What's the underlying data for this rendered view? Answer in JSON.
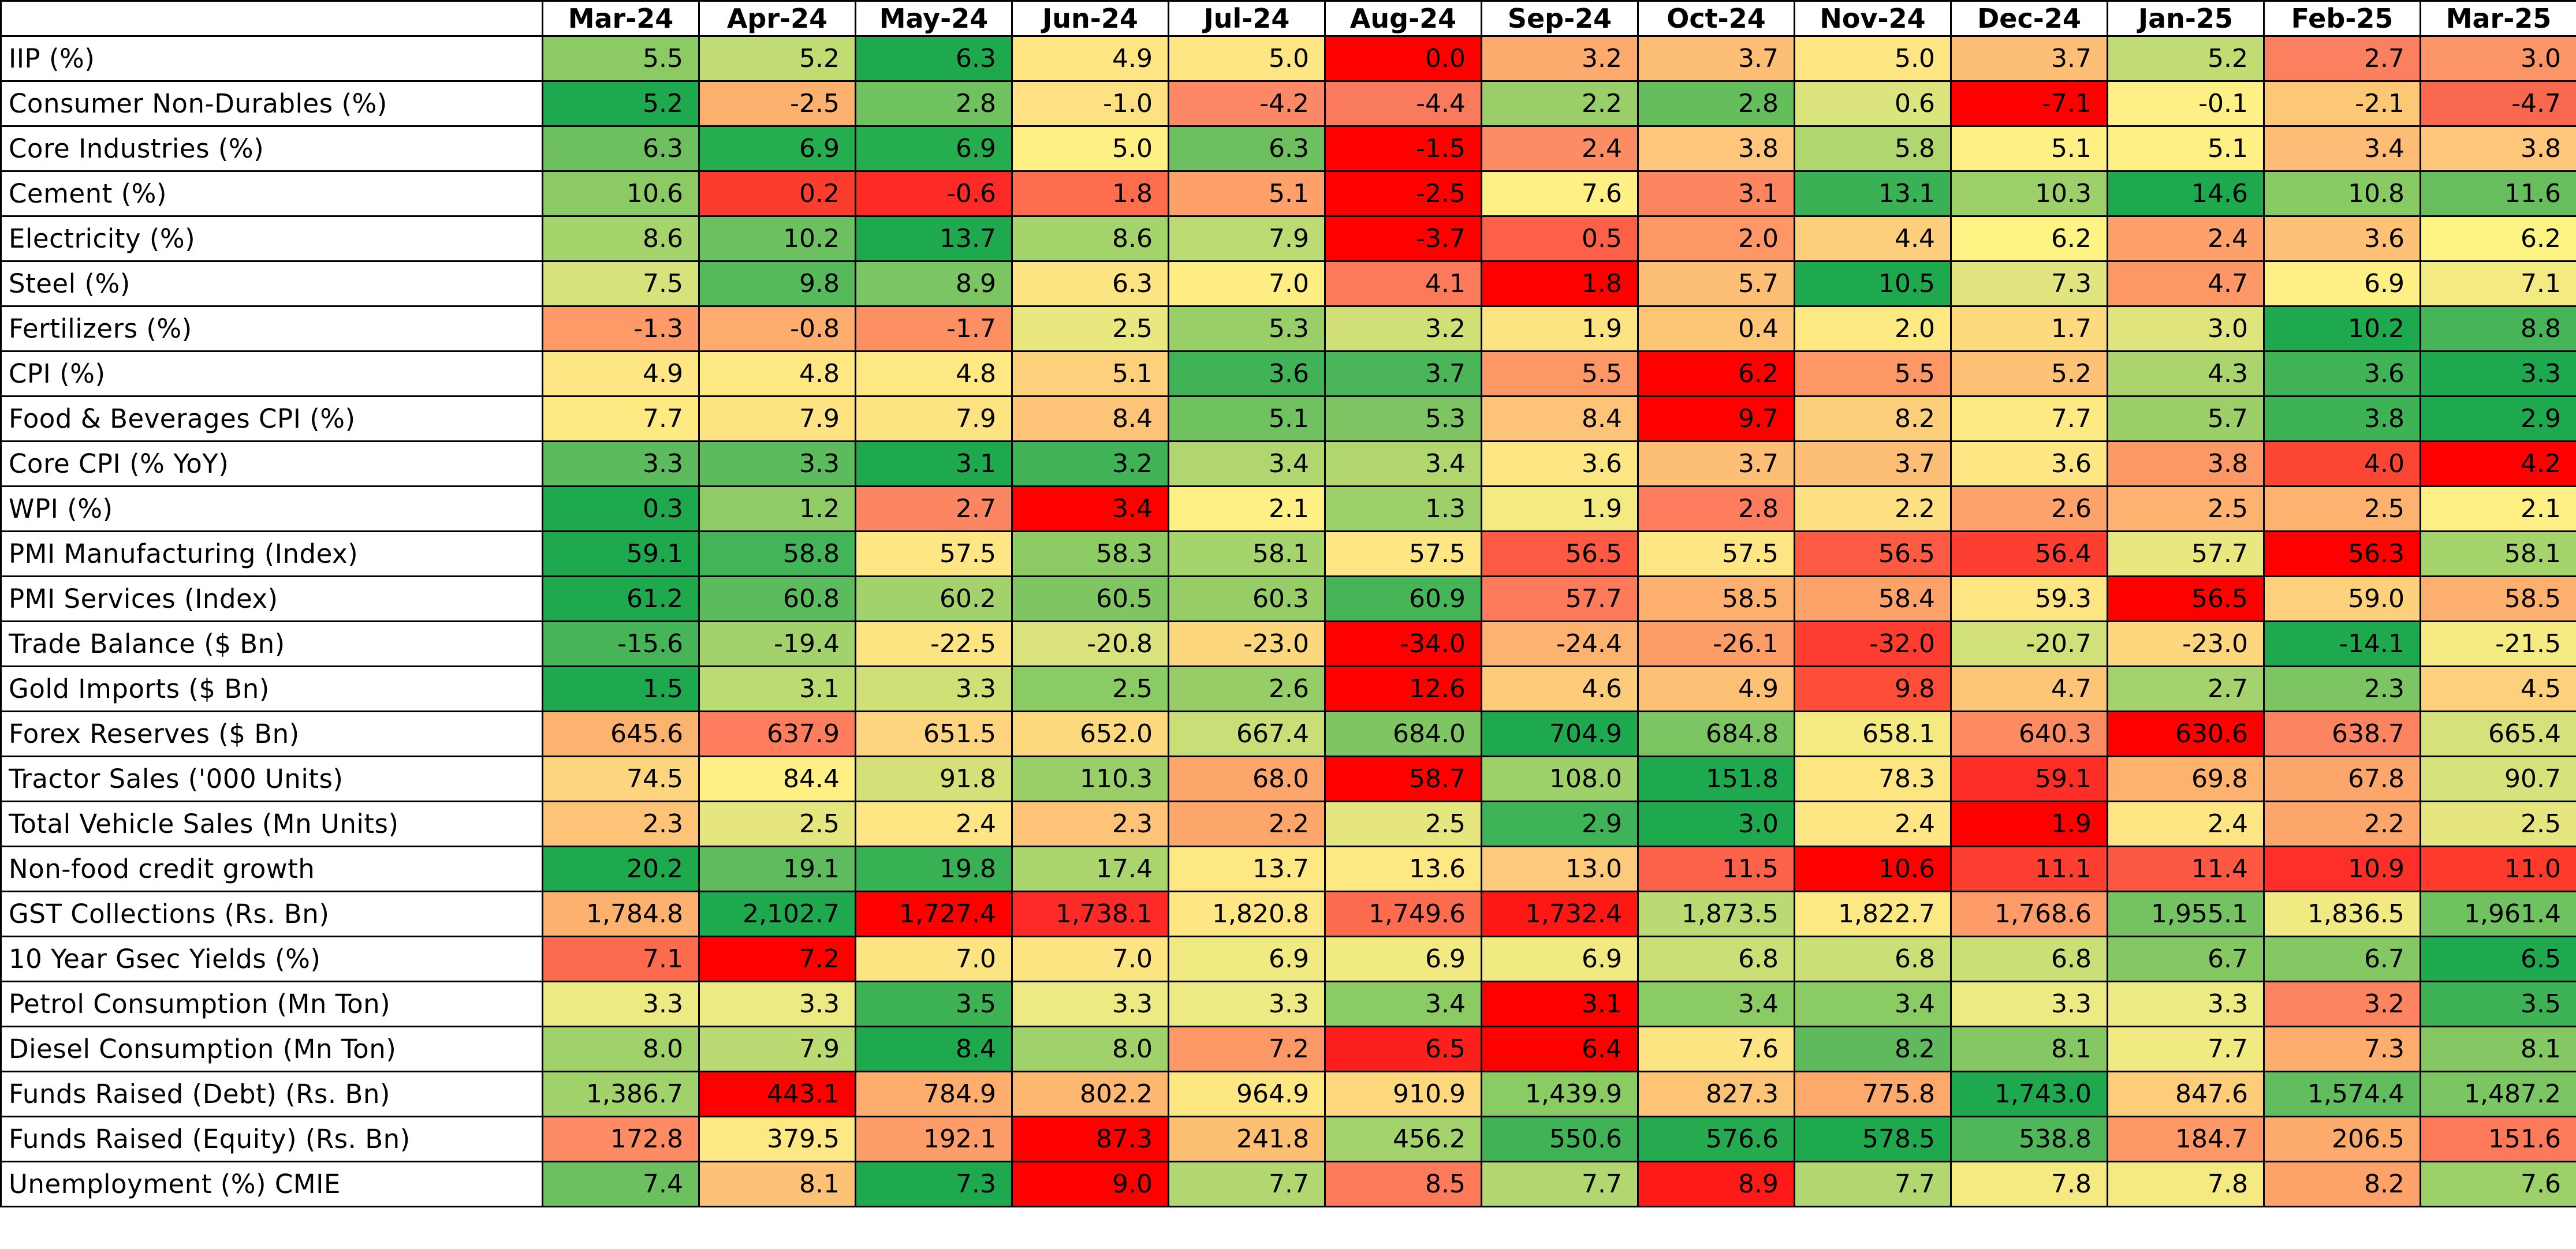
{
  "chart_data": {
    "type": "heatmap",
    "columns": [
      "Mar-24",
      "Apr-24",
      "May-24",
      "Jun-24",
      "Jul-24",
      "Aug-24",
      "Sep-24",
      "Oct-24",
      "Nov-24",
      "Dec-24",
      "Jan-25",
      "Feb-25",
      "Mar-25"
    ],
    "rows": [
      {
        "label": " IIP (%)",
        "values": [
          "5.5",
          "5.2",
          "6.3",
          "4.9",
          "5.0",
          "0.0",
          "3.2",
          "3.7",
          "5.0",
          "3.7",
          "5.2",
          "2.7",
          "3.0"
        ],
        "colors": [
          "#8ccb64",
          "#c0dc73",
          "#1fa94e",
          "#fde683",
          "#fde683",
          "#ff0000",
          "#fcaa6e",
          "#fdbf75",
          "#fde683",
          "#fdbf75",
          "#c0dc73",
          "#fa8060",
          "#fb9467"
        ]
      },
      {
        "label": "Consumer Non-Durables (%)",
        "values": [
          "5.2",
          "-2.5",
          "2.8",
          "-1.0",
          "-4.2",
          "-4.4",
          "2.2",
          "2.8",
          "0.6",
          "-7.1",
          "-0.1",
          "-2.1",
          "-4.7"
        ],
        "colors": [
          "#1fa94e",
          "#fdb16f",
          "#70c15f",
          "#fde182",
          "#fc8865",
          "#fa7a5d",
          "#99ce69",
          "#65be5c",
          "#dbe47d",
          "#ff0000",
          "#fef084",
          "#fdc876",
          "#f9684e"
        ]
      },
      {
        "label": "Core Industries (%)",
        "values": [
          "6.3",
          "6.9",
          "6.9",
          "5.0",
          "6.3",
          "-1.5",
          "2.4",
          "3.8",
          "5.8",
          "5.1",
          "5.1",
          "3.4",
          "3.8"
        ],
        "colors": [
          "#6dbf60",
          "#26ad50",
          "#26ad50",
          "#fef085",
          "#6dbf60",
          "#ff0000",
          "#fc8c63",
          "#fdc67a",
          "#b0d670",
          "#fef085",
          "#fef085",
          "#fdbd76",
          "#fdc67a"
        ]
      },
      {
        "label": "Cement (%)",
        "values": [
          "10.6",
          "0.2",
          "-0.6",
          "1.8",
          "5.1",
          "-2.5",
          "7.6",
          "3.1",
          "13.1",
          "10.3",
          "14.6",
          "10.8",
          "11.6"
        ],
        "colors": [
          "#8ccb64",
          "#fc3d2d",
          "#fd2a26",
          "#fe6d4c",
          "#fda06a",
          "#ff0000",
          "#fef084",
          "#fd8660",
          "#3bb156",
          "#9dcf6a",
          "#1fa94e",
          "#88ca63",
          "#68be5d"
        ]
      },
      {
        "label": "Electricity (%)",
        "values": [
          "8.6",
          "10.2",
          "13.7",
          "8.6",
          "7.9",
          "-3.7",
          "0.5",
          "2.0",
          "4.4",
          "6.2",
          "2.4",
          "3.6",
          "6.2"
        ],
        "colors": [
          "#a5d36c",
          "#6dc05f",
          "#1fa94e",
          "#a5d36c",
          "#bcdb73",
          "#ff0000",
          "#fc6147",
          "#fd9866",
          "#fdcf7d",
          "#fef484",
          "#fda06a",
          "#fdc275",
          "#fef484"
        ]
      },
      {
        "label": "Steel (%)",
        "values": [
          "7.5",
          "9.8",
          "8.9",
          "6.3",
          "7.0",
          "4.1",
          "1.8",
          "5.7",
          "10.5",
          "7.3",
          "4.7",
          "6.9",
          "7.1"
        ],
        "colors": [
          "#d7e27c",
          "#56ba5b",
          "#7bc562",
          "#fde482",
          "#feee84",
          "#fc7a5a",
          "#ff0000",
          "#fdbe75",
          "#1fa94e",
          "#e1e57f",
          "#fd9866",
          "#fef084",
          "#f3ea81"
        ]
      },
      {
        "label": "Fertilizers (%)",
        "values": [
          "-1.3",
          "-0.8",
          "-1.7",
          "2.5",
          "5.3",
          "3.2",
          "1.9",
          "0.4",
          "2.0",
          "1.7",
          "3.0",
          "10.2",
          "8.8"
        ],
        "colors": [
          "#fd9a67",
          "#fdac6d",
          "#fc9062",
          "#e9e780",
          "#99cf68",
          "#d0e077",
          "#fde482",
          "#fdc676",
          "#fde882",
          "#fdda7e",
          "#dfe47d",
          "#1fa94e",
          "#45b558"
        ]
      },
      {
        "label": "CPI (%)",
        "values": [
          "4.9",
          "4.8",
          "4.8",
          "5.1",
          "3.6",
          "3.7",
          "5.5",
          "6.2",
          "5.5",
          "5.2",
          "4.3",
          "3.6",
          "3.3"
        ],
        "colors": [
          "#fde683",
          "#fde883",
          "#fde883",
          "#fdd07c",
          "#40b357",
          "#4bb659",
          "#fd9866",
          "#ff0000",
          "#fd9866",
          "#fdc275",
          "#a9d46e",
          "#40b357",
          "#1fa94e"
        ]
      },
      {
        "label": "Food & Beverages CPI (%)",
        "values": [
          "7.7",
          "7.9",
          "7.9",
          "8.4",
          "5.1",
          "5.3",
          "8.4",
          "9.7",
          "8.2",
          "7.7",
          "5.7",
          "3.8",
          "2.9"
        ],
        "colors": [
          "#fdea83",
          "#fde382",
          "#fde382",
          "#fdc376",
          "#70c160",
          "#7ec463",
          "#fdc376",
          "#ff0000",
          "#fdcf7a",
          "#fdea83",
          "#9ccf69",
          "#3db356",
          "#1fa94e"
        ]
      },
      {
        "label": "Core CPI (% YoY)",
        "values": [
          "3.3",
          "3.3",
          "3.1",
          "3.2",
          "3.4",
          "3.4",
          "3.6",
          "3.7",
          "3.7",
          "3.6",
          "3.8",
          "4.0",
          "4.2"
        ],
        "colors": [
          "#5cbb5c",
          "#5cbb5c",
          "#1fa94e",
          "#40b357",
          "#b1d66f",
          "#b1d66f",
          "#fde683",
          "#fdbf75",
          "#fdbf75",
          "#fde683",
          "#fc9866",
          "#fc4634",
          "#ff0000"
        ]
      },
      {
        "label": "WPI (%)",
        "values": [
          "0.3",
          "1.2",
          "2.7",
          "3.4",
          "2.1",
          "1.3",
          "1.9",
          "2.8",
          "2.2",
          "2.6",
          "2.5",
          "2.5",
          "2.1"
        ],
        "colors": [
          "#1fa94e",
          "#8fcc66",
          "#fc8662",
          "#ff0000",
          "#fef084",
          "#9ed06a",
          "#f3ea81",
          "#fd7c5d",
          "#fde082",
          "#fca26a",
          "#fdb270",
          "#fdb270",
          "#fef084"
        ]
      },
      {
        "label": "PMI Manufacturing (Index)",
        "values": [
          "59.1",
          "58.8",
          "57.5",
          "58.3",
          "58.1",
          "57.5",
          "56.5",
          "57.5",
          "56.5",
          "56.4",
          "57.7",
          "56.3",
          "58.1"
        ],
        "colors": [
          "#1fa94e",
          "#43b458",
          "#fde683",
          "#8dcb64",
          "#a5d36c",
          "#fde683",
          "#fd5a43",
          "#fde683",
          "#fd5a43",
          "#fd3f31",
          "#e9e780",
          "#ff0000",
          "#a5d36c"
        ]
      },
      {
        "label": "PMI Services (Index)",
        "values": [
          "61.2",
          "60.8",
          "60.2",
          "60.5",
          "60.3",
          "60.9",
          "57.7",
          "58.5",
          "58.4",
          "59.3",
          "56.5",
          "59.0",
          "58.5"
        ],
        "colors": [
          "#1fa94e",
          "#5cbb5c",
          "#a3d26c",
          "#7fc663",
          "#97cd67",
          "#46b558",
          "#fd7a5a",
          "#fdaf6e",
          "#fda269",
          "#fee584",
          "#ff0000",
          "#fdd07c",
          "#fdaf6e"
        ]
      },
      {
        "label": "Trade Balance ($ Bn)",
        "values": [
          "-15.6",
          "-19.4",
          "-22.5",
          "-20.8",
          "-23.0",
          "-34.0",
          "-24.4",
          "-26.1",
          "-32.0",
          "-20.7",
          "-23.0",
          "-14.1",
          "-21.5"
        ],
        "colors": [
          "#45b558",
          "#a3d26c",
          "#fde482",
          "#d9e27c",
          "#fdd77e",
          "#ff0000",
          "#fdb270",
          "#fd9e68",
          "#fd3d2f",
          "#d2e07a",
          "#fdd77e",
          "#1fa94e",
          "#f6eb82"
        ]
      },
      {
        "label": "Gold Imports ($ Bn)",
        "values": [
          "1.5",
          "3.1",
          "3.3",
          "2.5",
          "2.6",
          "12.6",
          "4.6",
          "4.9",
          "9.8",
          "4.7",
          "2.7",
          "2.3",
          "4.5"
        ],
        "colors": [
          "#1fa94e",
          "#bddb73",
          "#d0e077",
          "#8acb64",
          "#97cd67",
          "#ff0000",
          "#fdcc7b",
          "#fdc075",
          "#fe4d38",
          "#fdc676",
          "#a4d26c",
          "#7dc562",
          "#fdd07c"
        ]
      },
      {
        "label": "Forex Reserves ($ Bn)",
        "values": [
          "645.6",
          "637.9",
          "651.5",
          "652.0",
          "667.4",
          "684.0",
          "704.9",
          "684.8",
          "658.1",
          "640.3",
          "630.6",
          "638.7",
          "665.4"
        ],
        "colors": [
          "#fdb370",
          "#fd7d5e",
          "#fdd57e",
          "#fdd97e",
          "#c9de76",
          "#7fc663",
          "#1fa94e",
          "#7bc562",
          "#f5ea82",
          "#fd8b62",
          "#ff0000",
          "#fd8461",
          "#d5e17a"
        ]
      },
      {
        "label": "Tractor Sales ('000 Units)",
        "values": [
          "74.5",
          "84.4",
          "91.8",
          "110.3",
          "68.0",
          "58.7",
          "108.0",
          "151.8",
          "78.3",
          "59.1",
          "69.8",
          "67.8",
          "90.7"
        ],
        "colors": [
          "#fdd57e",
          "#fef084",
          "#d4e179",
          "#99ce69",
          "#fda66b",
          "#ff0000",
          "#9fd16b",
          "#1fa94e",
          "#fde682",
          "#fd2e25",
          "#fdb36e",
          "#fda66b",
          "#d7e27c"
        ]
      },
      {
        "label": "Total Vehicle Sales (Mn Units)",
        "values": [
          "2.3",
          "2.5",
          "2.4",
          "2.3",
          "2.2",
          "2.5",
          "2.9",
          "3.0",
          "2.4",
          "1.9",
          "2.4",
          "2.2",
          "2.5"
        ],
        "colors": [
          "#fdc478",
          "#e6e67f",
          "#fde683",
          "#fdc478",
          "#fda66b",
          "#e6e67f",
          "#3fb357",
          "#1fa94e",
          "#fde683",
          "#ff0000",
          "#fde683",
          "#fda66b",
          "#e6e67f"
        ]
      },
      {
        "label": "Non-food credit growth",
        "values": [
          "20.2",
          "19.1",
          "19.8",
          "17.4",
          "13.7",
          "13.6",
          "13.0",
          "11.5",
          "10.6",
          "11.1",
          "11.4",
          "10.9",
          "11.0"
        ],
        "colors": [
          "#1fa94e",
          "#5fbc5e",
          "#38b155",
          "#a9d46e",
          "#fde883",
          "#fde883",
          "#fdca7b",
          "#fc6249",
          "#ff0000",
          "#fc3f31",
          "#fd5843",
          "#fd3029",
          "#fd3a2c"
        ]
      },
      {
        "label": "GST Collections (Rs. Bn)",
        "values": [
          "1,784.8",
          "2,102.7",
          "1,727.4",
          "1,738.1",
          "1,820.8",
          "1,749.6",
          "1,732.4",
          "1,873.5",
          "1,822.7",
          "1,768.6",
          "1,955.1",
          "1,836.5",
          "1,961.4"
        ],
        "colors": [
          "#fdb16f",
          "#1fa94e",
          "#ff0000",
          "#fd2b27",
          "#fee684",
          "#fd6c4f",
          "#fd1814",
          "#bbda73",
          "#fde984",
          "#fd9c68",
          "#74c261",
          "#f1e981",
          "#70c160"
        ]
      },
      {
        "label": "10 Year Gsec Yields (%)",
        "values": [
          "7.1",
          "7.2",
          "7.0",
          "7.0",
          "6.9",
          "6.9",
          "6.9",
          "6.8",
          "6.8",
          "6.8",
          "6.7",
          "6.7",
          "6.5"
        ],
        "colors": [
          "#fc6b4d",
          "#ff0000",
          "#fde482",
          "#fde482",
          "#f1e981",
          "#f1e981",
          "#f1e981",
          "#cbdf77",
          "#cbdf77",
          "#cbdf77",
          "#85c763",
          "#85c763",
          "#1fa94e"
        ]
      },
      {
        "label": "Petrol Consumption (Mn Ton)",
        "values": [
          "3.3",
          "3.3",
          "3.5",
          "3.3",
          "3.3",
          "3.4",
          "3.1",
          "3.4",
          "3.4",
          "3.3",
          "3.3",
          "3.2",
          "3.5"
        ],
        "colors": [
          "#ecea82",
          "#ecea82",
          "#3db356",
          "#ecea82",
          "#ecea82",
          "#8bcb64",
          "#ff0000",
          "#8bcb64",
          "#8bcb64",
          "#ecea82",
          "#ecea82",
          "#fd8460",
          "#3db356"
        ]
      },
      {
        "label": "Diesel Consumption (Mn Ton)",
        "values": [
          "8.0",
          "7.9",
          "8.4",
          "8.0",
          "7.2",
          "6.5",
          "6.4",
          "7.6",
          "8.2",
          "8.1",
          "7.7",
          "7.3",
          "8.1"
        ],
        "colors": [
          "#a0d16b",
          "#bbda73",
          "#1fa94e",
          "#a0d16b",
          "#fc9866",
          "#fc1f1c",
          "#ff0000",
          "#fde483",
          "#5eba5c",
          "#85c763",
          "#f1e981",
          "#fdad6d",
          "#85c763"
        ]
      },
      {
        "label": "Funds Raised (Debt) (Rs. Bn)",
        "values": [
          "1,386.7",
          "443.1",
          "784.9",
          "802.2",
          "964.9",
          "910.9",
          "1,439.9",
          "827.3",
          "775.8",
          "1,743.0",
          "847.6",
          "1,574.4",
          "1,487.2"
        ],
        "colors": [
          "#a2d26b",
          "#ff0000",
          "#fdae6d",
          "#fdb770",
          "#fde783",
          "#fdd87e",
          "#8acb64",
          "#fdc475",
          "#fda96c",
          "#1fa94e",
          "#fdcd79",
          "#61bd5d",
          "#7bc562"
        ]
      },
      {
        "label": "Funds Raised (Equity) (Rs. Bn)",
        "values": [
          "172.8",
          "379.5",
          "192.1",
          "87.3",
          "241.8",
          "456.2",
          "550.6",
          "576.6",
          "578.5",
          "538.8",
          "184.7",
          "206.5",
          "151.6"
        ],
        "colors": [
          "#fd8c64",
          "#fde883",
          "#fd9d69",
          "#ff0000",
          "#fdc073",
          "#a4d26c",
          "#41b357",
          "#25aa50",
          "#1fa94e",
          "#4fb659",
          "#fd9867",
          "#fdab6c",
          "#fc7a5a"
        ]
      },
      {
        "label": "Unemployment (%) CMIE",
        "values": [
          "7.4",
          "8.1",
          "7.3",
          "9.0",
          "7.7",
          "8.5",
          "7.7",
          "8.9",
          "7.7",
          "7.8",
          "7.8",
          "8.2",
          "7.6"
        ],
        "colors": [
          "#6cc05f",
          "#fdc275",
          "#1fa94e",
          "#ff0000",
          "#b3d770",
          "#fd7a5a",
          "#b3d770",
          "#fe1a16",
          "#b3d770",
          "#f4ea81",
          "#f4ea81",
          "#fda36a",
          "#9ed06a"
        ]
      }
    ]
  }
}
